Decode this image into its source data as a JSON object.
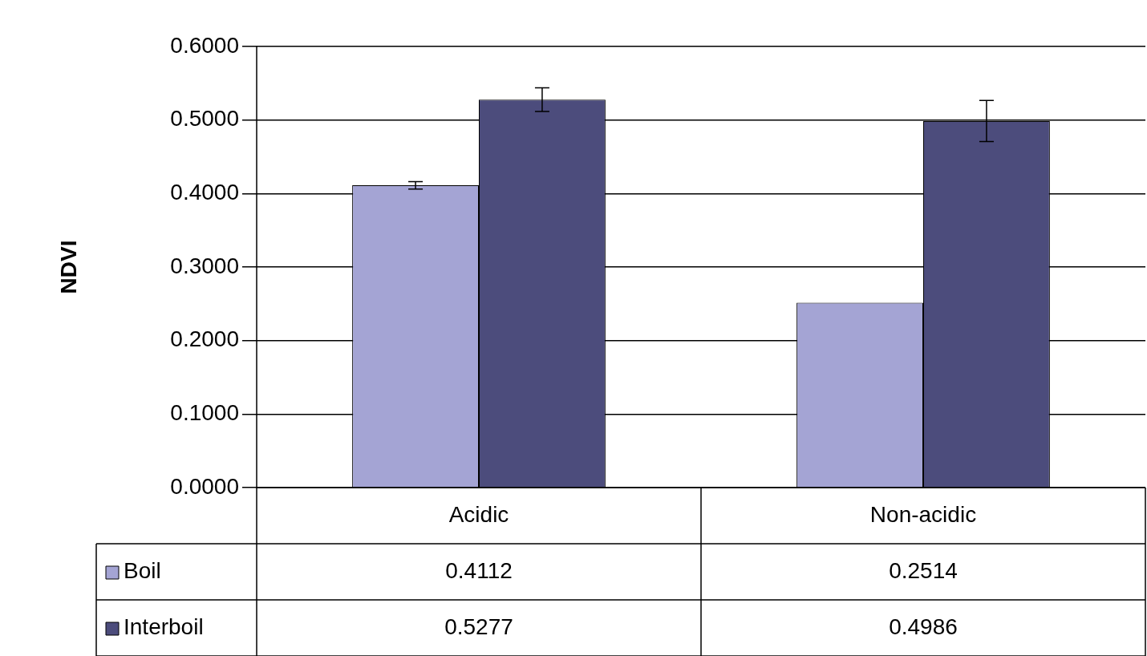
{
  "chart_data": {
    "type": "bar",
    "ylabel": "NDVI",
    "categories": [
      "Acidic",
      "Non-acidic"
    ],
    "series": [
      {
        "name": "Boil",
        "color": "#a4a4d4",
        "values": [
          0.4112,
          0.2514
        ],
        "errors": [
          0.005,
          null
        ]
      },
      {
        "name": "Interboil",
        "color": "#4c4c7c",
        "values": [
          0.5277,
          0.4986
        ],
        "errors": [
          0.016,
          0.028
        ]
      }
    ],
    "ylim": [
      0,
      0.6
    ],
    "yticks": [
      {
        "value": 0,
        "label": "0.0000"
      },
      {
        "value": 0.1,
        "label": "0.1000"
      },
      {
        "value": 0.2,
        "label": "0.2000"
      },
      {
        "value": 0.3,
        "label": "0.3000"
      },
      {
        "value": 0.4,
        "label": "0.4000"
      },
      {
        "value": 0.5,
        "label": "0.5000"
      },
      {
        "value": 0.6,
        "label": "0.6000"
      }
    ],
    "grid": "y",
    "legend": "bottom",
    "data_labels": true
  }
}
